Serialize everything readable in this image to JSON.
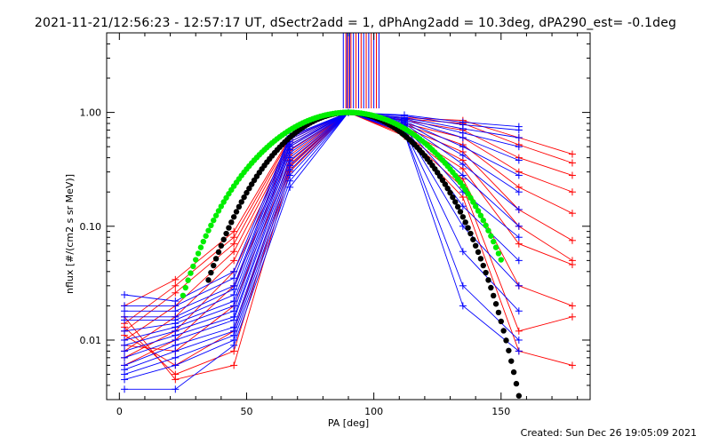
{
  "title": "2021-11-21/12:56:23 - 12:57:17 UT, dSectr2add = 1, dPhAng2add = 10.3deg, dPA290_est= -0.1deg",
  "footer": "Created: Sun Dec 26 19:05:09 2021",
  "chart_data": {
    "type": "scatter",
    "xlabel": "PA [deg]",
    "ylabel": "nflux [#/(cm2 s sr MeV)]",
    "xlim": [
      -5,
      185
    ],
    "ylim": [
      0.003,
      5
    ],
    "yscale": "log",
    "xticks": [
      0,
      50,
      100,
      150
    ],
    "yticks": [
      0.01,
      0.1,
      1.0
    ],
    "xtick_labels": [
      "0",
      "50",
      "100",
      "150"
    ],
    "ytick_labels": [
      "0.01",
      "0.10",
      "1.00"
    ],
    "colors": {
      "red": "#ff0000",
      "blue": "#0000ff",
      "green": "#00ee00",
      "black": "#000000"
    },
    "pa_points": [
      2,
      22,
      45,
      67,
      90,
      112,
      135,
      157,
      178
    ],
    "series": [
      {
        "color": "red",
        "y": [
          0.02,
          0.034,
          0.09,
          0.6,
          1.0,
          0.9,
          0.85,
          0.6,
          0.43
        ]
      },
      {
        "color": "red",
        "y": [
          0.014,
          0.03,
          0.08,
          0.58,
          1.0,
          0.88,
          0.8,
          0.52,
          0.36
        ]
      },
      {
        "color": "red",
        "y": [
          0.012,
          0.026,
          0.07,
          0.55,
          1.0,
          0.85,
          0.7,
          0.4,
          0.28
        ]
      },
      {
        "color": "red",
        "y": null
      },
      {
        "color": "red",
        "y": [
          0.01,
          0.02,
          0.06,
          0.52,
          1.0,
          0.8,
          0.6,
          0.3,
          0.2
        ]
      },
      {
        "color": "red",
        "y": [
          0.008,
          0.016,
          0.05,
          0.5,
          1.0,
          0.78,
          0.52,
          0.22,
          0.13
        ]
      },
      {
        "color": "red",
        "y": [
          0.007,
          0.012,
          0.04,
          0.46,
          1.0,
          0.74,
          0.45,
          0.14,
          0.075
        ]
      },
      {
        "color": "red",
        "y": [
          0.006,
          0.01,
          0.03,
          0.42,
          1.0,
          0.7,
          0.38,
          0.1,
          0.05
        ]
      },
      {
        "color": "red",
        "y": [
          0.009,
          0.008,
          0.02,
          0.38,
          1.0,
          0.68,
          0.32,
          0.07,
          0.046
        ]
      },
      {
        "color": "red",
        "y": [
          0.011,
          0.006,
          0.012,
          0.35,
          1.0,
          0.66,
          0.26,
          0.03,
          0.02
        ]
      },
      {
        "color": "red",
        "y": [
          0.013,
          0.005,
          0.008,
          0.33,
          1.0,
          0.64,
          0.22,
          0.012,
          0.016
        ]
      },
      {
        "color": "red",
        "y": [
          0.016,
          0.0045,
          0.006,
          0.3,
          1.0,
          0.62,
          0.18,
          0.008,
          0.006
        ]
      },
      {
        "color": "blue",
        "y": [
          0.025,
          0.022,
          0.04,
          0.62,
          1.0,
          0.95,
          0.82,
          0.75,
          null
        ]
      },
      {
        "color": "blue",
        "y": [
          0.02,
          0.02,
          0.035,
          0.6,
          1.0,
          0.93,
          0.78,
          0.7,
          null
        ]
      },
      {
        "color": "blue",
        "y": [
          0.018,
          0.018,
          0.03,
          0.58,
          1.0,
          0.9,
          0.72,
          0.6,
          null
        ]
      },
      {
        "color": "blue",
        "y": [
          0.016,
          0.016,
          0.028,
          0.55,
          1.0,
          0.88,
          0.66,
          0.5,
          null
        ]
      },
      {
        "color": "blue",
        "y": [
          0.015,
          0.015,
          0.025,
          0.52,
          1.0,
          0.86,
          0.6,
          0.38,
          null
        ]
      },
      {
        "color": "blue",
        "y": [
          0.012,
          0.014,
          0.022,
          0.5,
          1.0,
          0.84,
          0.5,
          0.28,
          null
        ]
      },
      {
        "color": "blue",
        "y": [
          0.01,
          0.013,
          0.02,
          0.47,
          1.0,
          0.82,
          0.42,
          0.2,
          null
        ]
      },
      {
        "color": "blue",
        "y": [
          0.009,
          0.012,
          0.018,
          0.44,
          1.0,
          0.8,
          0.35,
          0.14,
          null
        ]
      },
      {
        "color": "blue",
        "y": [
          0.008,
          0.011,
          0.016,
          0.4,
          1.0,
          0.78,
          0.28,
          0.1,
          null
        ]
      },
      {
        "color": "blue",
        "y": [
          0.007,
          0.01,
          0.015,
          0.37,
          1.0,
          0.76,
          0.2,
          0.08,
          null
        ]
      },
      {
        "color": "blue",
        "y": [
          0.006,
          0.009,
          0.013,
          0.34,
          1.0,
          0.74,
          0.15,
          0.05,
          null
        ]
      },
      {
        "color": "blue",
        "y": [
          0.0055,
          0.008,
          0.012,
          0.31,
          1.0,
          0.72,
          0.1,
          0.03,
          null
        ]
      },
      {
        "color": "blue",
        "y": [
          0.005,
          0.007,
          0.011,
          0.28,
          1.0,
          0.7,
          0.06,
          0.018,
          null
        ]
      },
      {
        "color": "blue",
        "y": [
          0.0045,
          0.006,
          0.01,
          0.25,
          1.0,
          0.68,
          0.03,
          0.01,
          null
        ]
      },
      {
        "color": "blue",
        "y": [
          0.0037,
          0.0037,
          0.009,
          0.22,
          1.0,
          0.66,
          0.02,
          0.008,
          null
        ]
      }
    ],
    "spike_x": [
      88,
      89,
      89.5,
      90,
      90.5,
      91,
      92,
      93,
      94,
      95,
      96,
      97,
      98,
      99,
      100,
      101,
      102
    ],
    "green_curve": {
      "label": "",
      "power": 4.3,
      "x_range": [
        25,
        150
      ]
    },
    "black_curve": {
      "label": "",
      "power": 6.1,
      "x_range": [
        35,
        158
      ]
    }
  }
}
